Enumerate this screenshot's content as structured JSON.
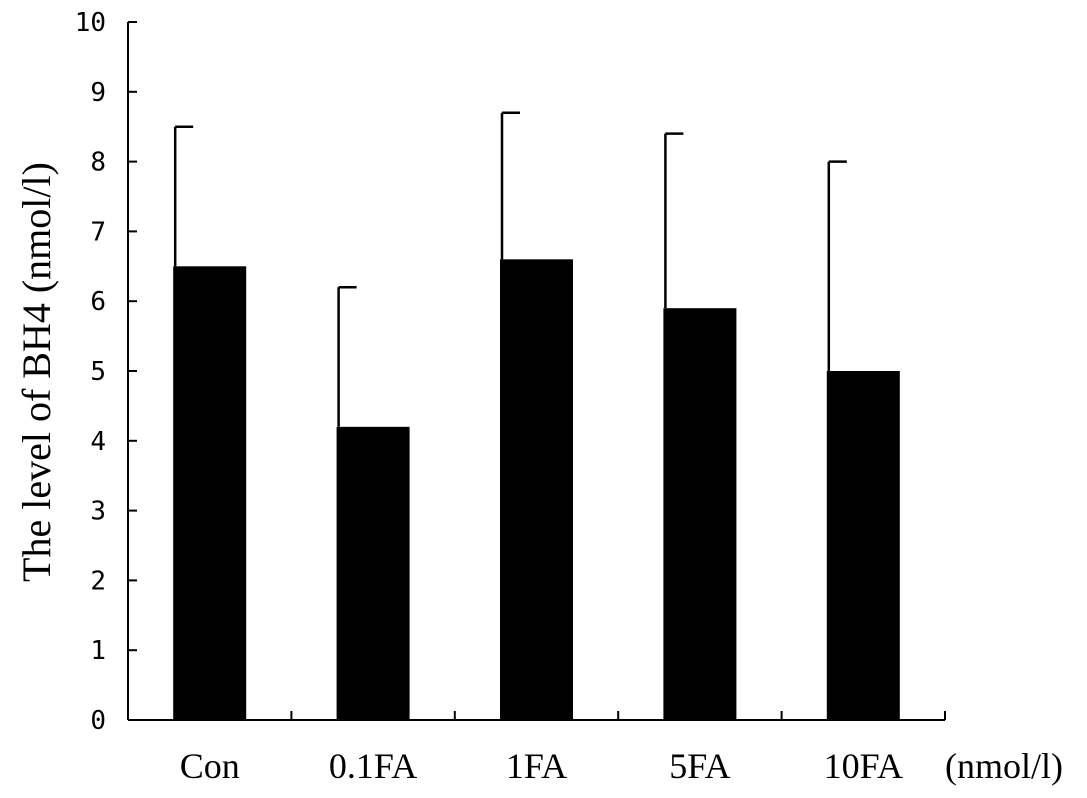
{
  "chart_data": {
    "type": "bar",
    "title": "",
    "xlabel": "",
    "x_unit": "(nmol/l)",
    "ylabel": "The level of BH4 (nmol/l)",
    "ylim": [
      0,
      10
    ],
    "yticks": [
      "0",
      "1",
      "2",
      "3",
      "4",
      "5",
      "6",
      "7",
      "8",
      "9",
      "10"
    ],
    "categories": [
      "Con",
      "0.1FA",
      "1FA",
      "5FA",
      "10FA"
    ],
    "values": [
      6.5,
      4.2,
      6.6,
      5.9,
      5.0
    ],
    "error_upper": [
      8.5,
      6.2,
      8.7,
      8.4,
      8.0
    ],
    "grid": false,
    "legend": "none",
    "bar_color": "#000000"
  }
}
